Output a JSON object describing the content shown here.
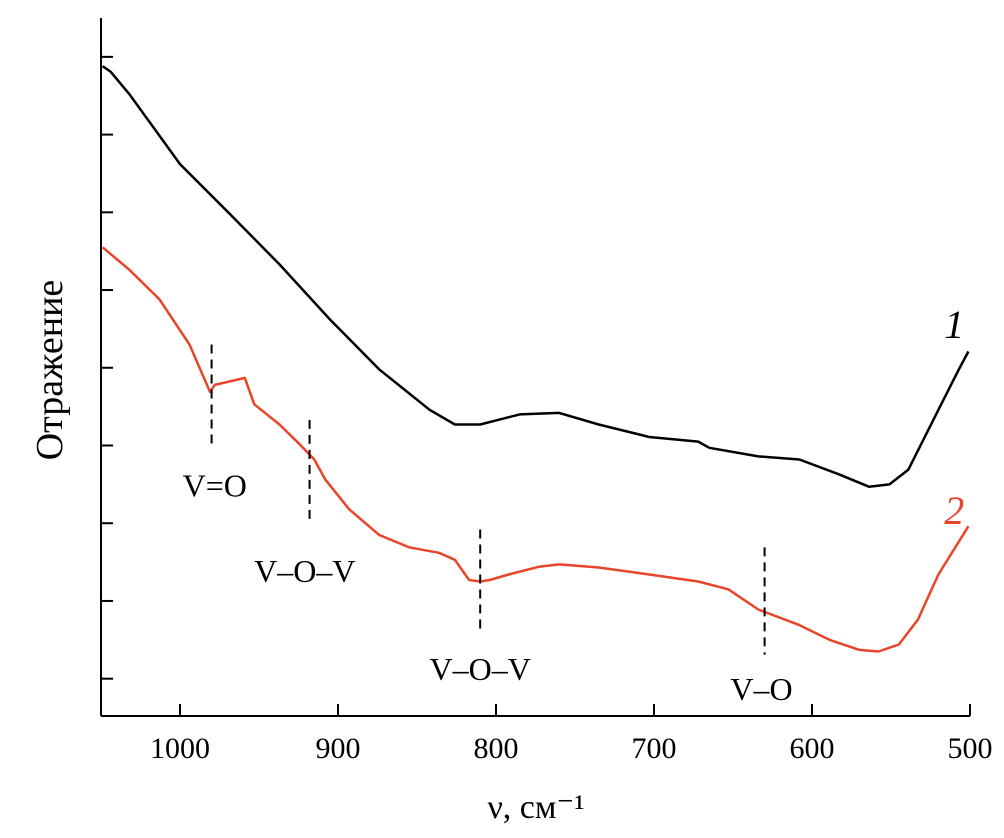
{
  "chart_data": {
    "type": "line",
    "title": "",
    "xlabel": "ν, см⁻¹",
    "ylabel": "Отражение",
    "xlim": [
      1050,
      500
    ],
    "ylim": [
      -0.48,
      8.5
    ],
    "x_ticks": [
      1000,
      900,
      800,
      700,
      600,
      500
    ],
    "y_ticks": [
      0,
      1,
      2,
      3,
      4,
      5,
      6,
      7,
      8
    ],
    "y_tick_labels_shown": false,
    "grid": false,
    "series": [
      {
        "name": "1",
        "color": "#000000",
        "x": [
          1049,
          1044,
          1032,
          1000,
          968,
          937,
          905,
          874,
          842,
          826,
          810,
          785,
          760,
          735,
          703,
          672,
          665,
          634,
          608,
          583,
          564,
          551,
          539,
          520,
          507,
          501
        ],
        "y": [
          7.88,
          7.81,
          7.52,
          6.62,
          5.97,
          5.33,
          4.62,
          3.98,
          3.46,
          3.27,
          3.27,
          3.4,
          3.42,
          3.27,
          3.11,
          3.05,
          2.97,
          2.86,
          2.82,
          2.63,
          2.47,
          2.5,
          2.69,
          3.46,
          3.98,
          4.21
        ]
      },
      {
        "name": "2",
        "color": "#e8452a",
        "x": [
          1049,
          1032,
          1013,
          994,
          981,
          978,
          959,
          953,
          937,
          924,
          915,
          908,
          893,
          874,
          855,
          836,
          826,
          817,
          810,
          804,
          792,
          773,
          760,
          735,
          703,
          672,
          653,
          634,
          608,
          589,
          570,
          558,
          545,
          533,
          520,
          501
        ],
        "y": [
          5.55,
          5.26,
          4.88,
          4.3,
          3.69,
          3.78,
          3.87,
          3.53,
          3.27,
          3.01,
          2.82,
          2.56,
          2.18,
          1.85,
          1.69,
          1.62,
          1.53,
          1.27,
          1.25,
          1.27,
          1.34,
          1.44,
          1.47,
          1.43,
          1.34,
          1.25,
          1.15,
          0.89,
          0.69,
          0.5,
          0.37,
          0.35,
          0.44,
          0.76,
          1.34,
          1.96
        ]
      }
    ],
    "annotations": [
      {
        "text": "V=O",
        "x": 980,
        "y_from": 4.3,
        "y_to": 2.95,
        "label_x": 978,
        "label_y": 2.5
      },
      {
        "text": "V–O–V",
        "x": 918,
        "y_from": 3.33,
        "y_to": 1.98,
        "label_x": 921,
        "label_y": 1.4
      },
      {
        "text": "V–O–V",
        "x": 810,
        "y_from": 1.92,
        "y_to": 0.57,
        "label_x": 810,
        "label_y": 0.14
      },
      {
        "text": "V–O",
        "x": 630,
        "y_from": 1.69,
        "y_to": 0.31,
        "label_x": 632,
        "label_y": -0.12
      }
    ],
    "series_labels": [
      {
        "text": "1",
        "color": "#000000",
        "x": 510,
        "y": 4.56
      },
      {
        "text": "2",
        "color": "#e8452a",
        "x": 510,
        "y": 2.17
      }
    ]
  }
}
